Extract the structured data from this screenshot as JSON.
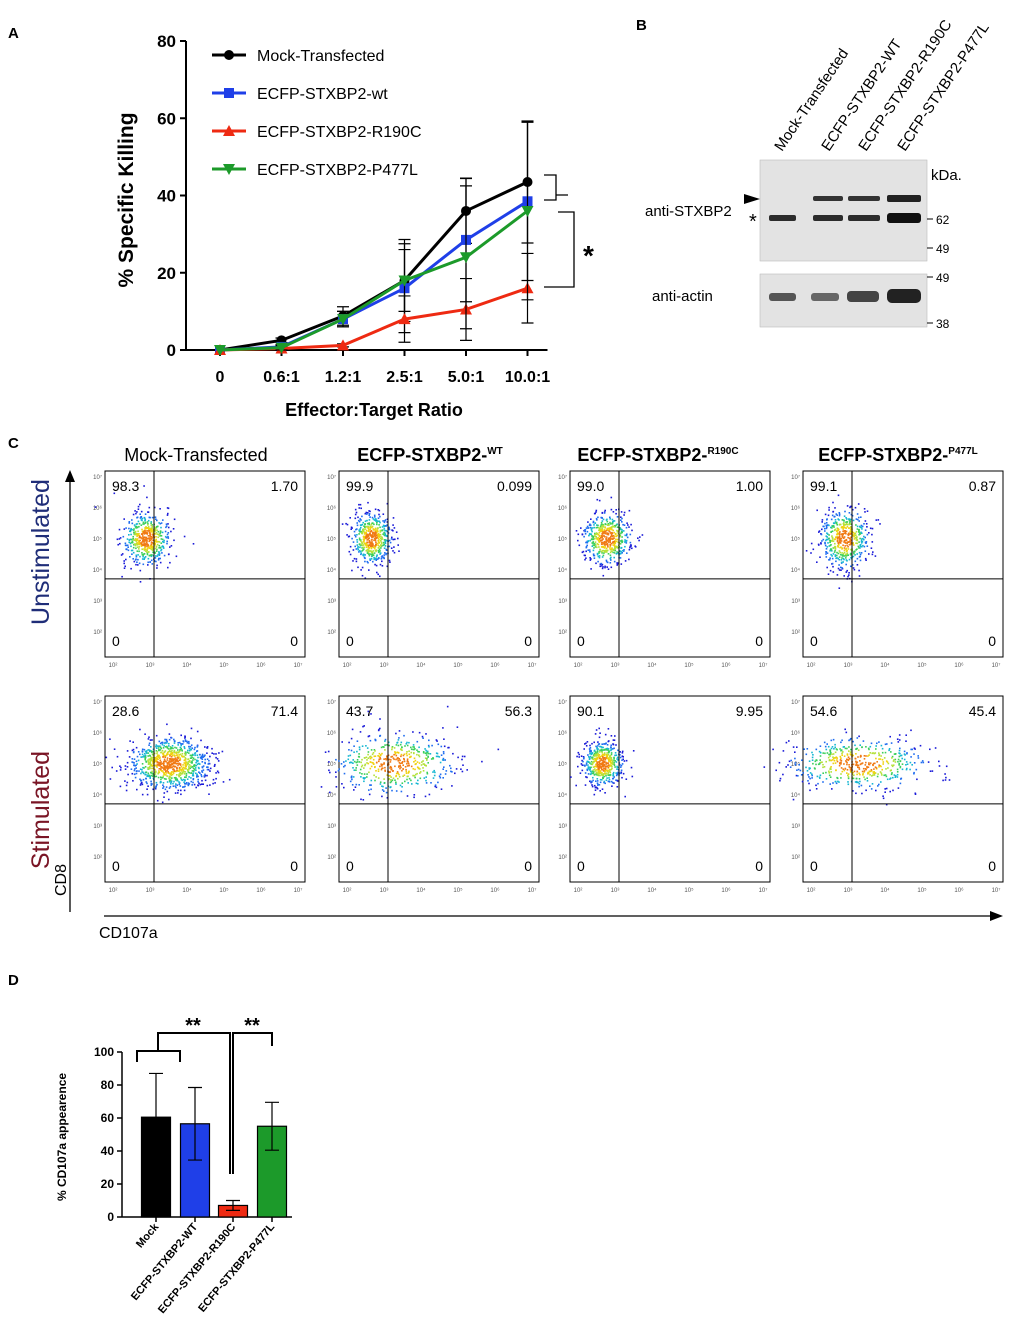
{
  "panel_letters": {
    "a": "A",
    "b": "B",
    "c": "C",
    "d": "D"
  },
  "colors": {
    "mock": "#000000",
    "wt": "#1f3fe8",
    "r190c": "#ee2a12",
    "p477l": "#1c9a2a",
    "unstim": "#1f2d78",
    "stim": "#7a1525"
  },
  "chart_data": [
    {
      "id": "A",
      "type": "line",
      "xlabel": "Effector:Target Ratio",
      "ylabel": "% Specific Killing",
      "categories": [
        "0",
        "0.6:1",
        "1.2:1",
        "2.5:1",
        "5.0:1",
        "10.0:1"
      ],
      "ylim": [
        0,
        80
      ],
      "yticks": [
        0,
        20,
        40,
        60,
        80
      ],
      "series": [
        {
          "name": "Mock-Transfected",
          "color": "#000000",
          "marker": "circle",
          "values": [
            0,
            2.5,
            8.8,
            18.0,
            36.0,
            43.5
          ],
          "err": [
            0,
            0.6,
            2.4,
            10.6,
            8.4,
            15.8
          ]
        },
        {
          "name": "ECFP-STXBP2-wt",
          "color": "#1f3fe8",
          "marker": "square",
          "values": [
            0,
            0.8,
            8.0,
            16.0,
            28.5,
            38.5
          ],
          "err": [
            0,
            0.6,
            2.0,
            11.5,
            16.0,
            20.5
          ]
        },
        {
          "name": "ECFP-STXBP2-R190C",
          "color": "#ee2a12",
          "marker": "triangle",
          "values": [
            0,
            0.4,
            1.2,
            8.0,
            10.5,
            16.0
          ],
          "err": [
            0,
            0.4,
            0.4,
            6.0,
            8.0,
            9.0
          ]
        },
        {
          "name": "ECFP-STXBP2-P477L",
          "color": "#1c9a2a",
          "marker": "triangle-down",
          "values": [
            0,
            0.6,
            8.0,
            18.0,
            24.0,
            36.0
          ],
          "err": [
            0,
            0.6,
            2.0,
            8.0,
            18.5,
            23.0
          ]
        }
      ],
      "significance": "*"
    },
    {
      "id": "D",
      "type": "bar",
      "ylabel": "% CD107a appearence",
      "categories": [
        "Mock",
        "ECFP-STXBP2-WT",
        "ECFP-STXBP2-R190C",
        "ECFP-STXBP2-P477L"
      ],
      "values": [
        60.5,
        56.5,
        7.0,
        55.0
      ],
      "errors": [
        26.5,
        22.0,
        3.0,
        14.5
      ],
      "colors": [
        "#000000",
        "#1f3fe8",
        "#ee2a12",
        "#1c9a2a"
      ],
      "ylim": [
        0,
        100
      ],
      "yticks": [
        0,
        20,
        40,
        60,
        80,
        100
      ],
      "significance": [
        "**",
        "**"
      ]
    }
  ],
  "western_blot": {
    "lanes": [
      "Mock-Transfected",
      "ECFP-STXBP2-WT",
      "ECFP-STXBP2-R190C",
      "ECFP-STXBP2-P477L"
    ],
    "kda_label": "kDa.",
    "top_label": "anti-STXBP2",
    "bottom_label": "anti-actin",
    "top_markers": [
      "62",
      "49"
    ],
    "bottom_markers": [
      "49",
      "38"
    ],
    "star": "*"
  },
  "flow": {
    "columns": [
      {
        "base": "Mock-Transfected",
        "sup": ""
      },
      {
        "base": "ECFP-STXBP2-",
        "sup": "WT"
      },
      {
        "base": "ECFP-STXBP2-",
        "sup": "R190C"
      },
      {
        "base": "ECFP-STXBP2-",
        "sup": "P477L"
      }
    ],
    "row_labels": [
      "Unstimulated",
      "Stimulated"
    ],
    "x_axis": "CD107a",
    "y_axis": "CD8",
    "y_ticks": [
      "10⁷",
      "10⁶",
      "10⁵",
      "10⁴",
      "10³",
      "10²"
    ],
    "x_ticks": [
      "10²",
      "10³",
      "10⁴",
      "10⁵",
      "10⁶",
      "10⁷"
    ],
    "quadrants": [
      [
        [
          "98.3",
          "1.70",
          "0",
          "0"
        ],
        [
          "99.9",
          "0.099",
          "0",
          "0"
        ],
        [
          "99.0",
          "1.00",
          "0",
          "0"
        ],
        [
          "99.1",
          "0.87",
          "0",
          "0"
        ]
      ],
      [
        [
          "28.6",
          "71.4",
          "0",
          "0"
        ],
        [
          "43.7",
          "56.3",
          "0",
          "0"
        ],
        [
          "90.1",
          "9.95",
          "0",
          "0"
        ],
        [
          "54.6",
          "45.4",
          "0",
          "0"
        ]
      ]
    ],
    "clouds": [
      [
        [
          0.45,
          0.55,
          0.06,
          0.07,
          0.95
        ],
        [
          0.35,
          0.55,
          0.05,
          0.07,
          0.99
        ],
        [
          0.4,
          0.55,
          0.06,
          0.07,
          0.97
        ],
        [
          0.45,
          0.7,
          0.06,
          0.08,
          0.97
        ]
      ],
      [
        [
          0.7,
          0.6,
          0.1,
          0.07,
          0.9
        ],
        [
          0.6,
          1.2,
          0.08,
          0.08,
          0.45
        ],
        [
          0.35,
          0.55,
          0.05,
          0.06,
          0.92
        ],
        [
          0.6,
          1.2,
          0.09,
          0.07,
          0.5
        ]
      ]
    ]
  }
}
